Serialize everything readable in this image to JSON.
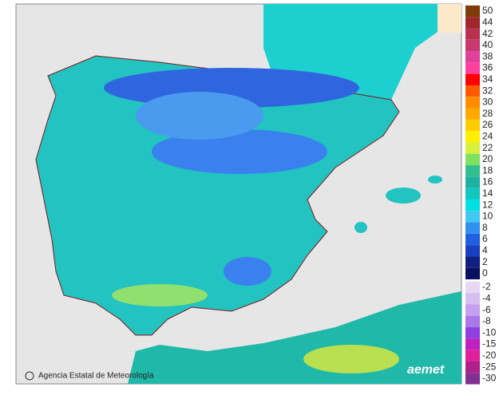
{
  "legend": {
    "warm_scale": [
      {
        "label": "50",
        "color": "#7f3b08"
      },
      {
        "label": "44",
        "color": "#a0282d"
      },
      {
        "label": "42",
        "color": "#b83250"
      },
      {
        "label": "40",
        "color": "#c83a6e"
      },
      {
        "label": "38",
        "color": "#e0409a"
      },
      {
        "label": "36",
        "color": "#ff3fa0"
      },
      {
        "label": "34",
        "color": "#ff0000"
      },
      {
        "label": "32",
        "color": "#ff5a00"
      },
      {
        "label": "30",
        "color": "#ff8c00"
      },
      {
        "label": "28",
        "color": "#ffa800"
      },
      {
        "label": "26",
        "color": "#ffcc00"
      },
      {
        "label": "24",
        "color": "#ffee00"
      },
      {
        "label": "22",
        "color": "#d8f03c"
      },
      {
        "label": "20",
        "color": "#80e060"
      },
      {
        "label": "18",
        "color": "#30c090"
      },
      {
        "label": "16",
        "color": "#20b0a0"
      },
      {
        "label": "14",
        "color": "#10c8c0"
      },
      {
        "label": "12",
        "color": "#00e0e0"
      },
      {
        "label": "10",
        "color": "#40c8f0"
      },
      {
        "label": "8",
        "color": "#3090f0"
      },
      {
        "label": "6",
        "color": "#2060e0"
      },
      {
        "label": "4",
        "color": "#1840c0"
      },
      {
        "label": "2",
        "color": "#102080"
      },
      {
        "label": "0",
        "color": "#0a1060"
      }
    ],
    "cold_scale": [
      {
        "label": "-2",
        "color": "#e6d8f5"
      },
      {
        "label": "-4",
        "color": "#d6c0f0"
      },
      {
        "label": "-6",
        "color": "#c4a0ee"
      },
      {
        "label": "-8",
        "color": "#a878e8"
      },
      {
        "label": "-10",
        "color": "#9040e0"
      },
      {
        "label": "-15",
        "color": "#c020c0"
      },
      {
        "label": "-20",
        "color": "#e0209a"
      },
      {
        "label": "-25",
        "color": "#b0208a"
      },
      {
        "label": "-30",
        "color": "#803090"
      }
    ]
  },
  "credits": {
    "agency": "Agencia Estatal de Meteorología",
    "logo": "aemet"
  }
}
